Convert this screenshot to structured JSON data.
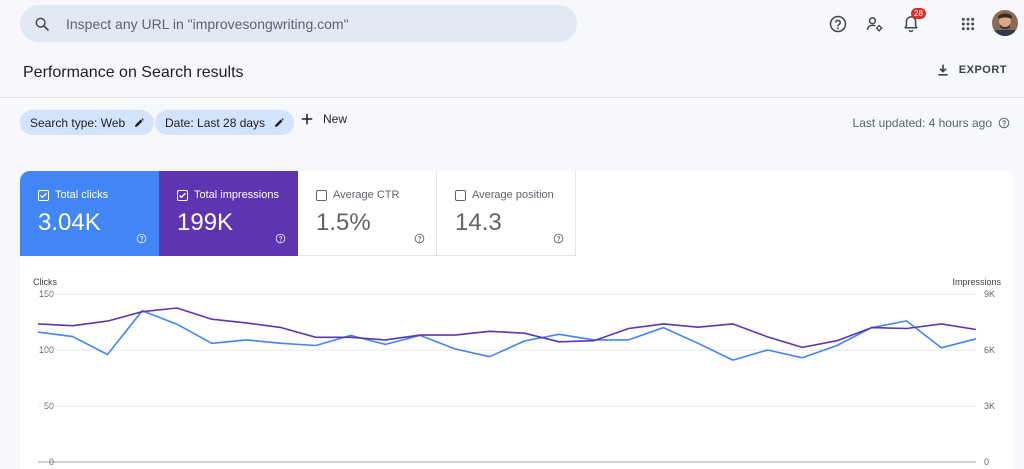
{
  "search": {
    "placeholder": "Inspect any URL in \"improvesongwriting.com\""
  },
  "header": {
    "notification_count": "28",
    "icons": [
      "help-icon",
      "manage-users-icon",
      "notifications-icon",
      "apps-grid-icon",
      "avatar"
    ]
  },
  "page": {
    "title": "Performance on Search results",
    "export_label": "EXPORT"
  },
  "filters": {
    "search_type": "Search type: Web",
    "date": "Date: Last 28 days",
    "new_label": "New",
    "last_updated": "Last updated: 4 hours ago"
  },
  "metrics": [
    {
      "label": "Total clicks",
      "value": "3.04K",
      "checked": true,
      "color": "#4285f4"
    },
    {
      "label": "Total impressions",
      "value": "199K",
      "checked": true,
      "color": "#5e35b1"
    },
    {
      "label": "Average CTR",
      "value": "1.5%",
      "checked": false
    },
    {
      "label": "Average position",
      "value": "14.3",
      "checked": false
    }
  ],
  "chart_data": {
    "type": "line",
    "left_axis": {
      "label": "Clicks",
      "ticks": [
        "150",
        "100",
        "50",
        "0"
      ],
      "range": [
        0,
        150
      ]
    },
    "right_axis": {
      "label": "Impressions",
      "ticks": [
        "9K",
        "6K",
        "3K",
        "0"
      ],
      "range": [
        0,
        9000
      ]
    },
    "grid": true,
    "series": [
      {
        "axis": "left",
        "color": "#4285f4",
        "values": [
          116,
          112,
          96,
          135,
          123,
          106,
          109,
          106,
          104,
          113,
          105,
          113,
          101,
          94,
          108,
          114,
          109,
          109,
          120,
          106,
          91,
          100,
          93,
          104,
          120,
          126,
          102,
          110
        ]
      },
      {
        "axis": "right",
        "color": "#5e35b1",
        "values": [
          7400,
          7300,
          7550,
          8050,
          8250,
          7650,
          7450,
          7200,
          6680,
          6680,
          6540,
          6800,
          6800,
          7000,
          6900,
          6440,
          6500,
          7150,
          7400,
          7220,
          7400,
          6700,
          6140,
          6500,
          7200,
          7150,
          7400,
          7100
        ]
      }
    ]
  }
}
